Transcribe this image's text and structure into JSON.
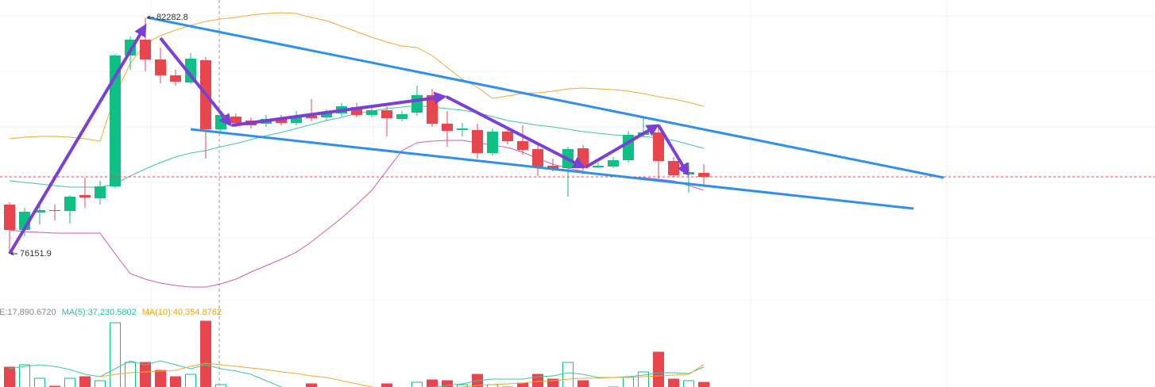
{
  "chart_data": {
    "type": "candlestick",
    "up_color": "#0ebf86",
    "down_color": "#e8464f",
    "ylim": [
      74917,
      82735
    ],
    "open": [
      77427,
      76769,
      77221,
      77283,
      77262,
      77674,
      77591,
      77900,
      81295,
      81706,
      81192,
      80780,
      80595,
      81171,
      79381,
      79711,
      79608,
      79525,
      79669,
      79546,
      79731,
      79690,
      79793,
      79958,
      79752,
      79875,
      79649,
      79813,
      80266,
      79525,
      79361,
      79361,
      78764,
      79320,
      79073,
      78867,
      78435,
      78373,
      78888,
      78394,
      78414,
      78579,
      79237,
      79299,
      78558,
      78209,
      78250
    ],
    "high": [
      77489,
      77344,
      77427,
      77427,
      77674,
      78126,
      78044,
      81336,
      81789,
      82282.8,
      81501,
      80924,
      81357,
      81254,
      79855,
      79793,
      79690,
      79752,
      79752,
      79855,
      80163,
      79896,
      80060,
      80060,
      79937,
      79978,
      79855,
      80513,
      80431,
      79855,
      79546,
      79525,
      79402,
      79443,
      79484,
      79032,
      78620,
      78929,
      78970,
      78517,
      78661,
      79340,
      79690,
      79443,
      78661,
      78517,
      78476
    ],
    "low": [
      76151.9,
      76604,
      76913,
      77015,
      76933,
      77344,
      77427,
      77859,
      80924,
      80883,
      80575,
      80513,
      80554,
      78620,
      79279,
      79443,
      79402,
      79443,
      79484,
      79484,
      79587,
      79608,
      79711,
      79690,
      79690,
      79196,
      79587,
      79731,
      79443,
      78929,
      79196,
      78620,
      78702,
      78991,
      78723,
      78168,
      78291,
      77633,
      78312,
      78373,
      78373,
      78517,
      79176,
      78106,
      78147,
      77736,
      77941
    ],
    "close": [
      76769,
      77242,
      77283,
      77262,
      77633,
      77612,
      77900,
      81295,
      81706,
      81192,
      80780,
      80616,
      81213,
      79381,
      79752,
      79546,
      79484,
      79649,
      79546,
      79731,
      79669,
      79793,
      79978,
      79752,
      79875,
      79669,
      79772,
      80266,
      79525,
      79340,
      79402,
      78764,
      79320,
      79073,
      78847,
      78414,
      78353,
      78867,
      78394,
      78435,
      78579,
      79237,
      79299,
      78558,
      78188,
      78270,
      78147
    ],
    "overlays": [
      {
        "color": "#f0a92e",
        "values": [
          79135,
          79176,
          79196,
          79196,
          79176,
          79135,
          79073,
          80266,
          81089,
          81603,
          81809,
          81953,
          82077,
          82180,
          82241,
          82282,
          82344,
          82385,
          82406,
          82385,
          82282,
          82200,
          82056,
          81912,
          81768,
          81645,
          81542,
          81501,
          81295,
          80986,
          80678,
          80472,
          80184,
          80246,
          80307,
          80328,
          80369,
          80431,
          80451,
          80431,
          80410,
          80369,
          80307,
          80225,
          80163,
          80081,
          79978
        ]
      },
      {
        "color": "#3cc7a4",
        "values": [
          78044,
          78003,
          77962,
          77921,
          77880,
          77880,
          77880,
          77962,
          78168,
          78353,
          78517,
          78661,
          78764,
          78826,
          78929,
          79011,
          79114,
          79217,
          79299,
          79402,
          79505,
          79608,
          79690,
          79793,
          79855,
          79916,
          79958,
          79999,
          79958,
          79916,
          79875,
          79813,
          79711,
          79608,
          79546,
          79484,
          79443,
          79381,
          79320,
          79279,
          79237,
          79217,
          79196,
          79155,
          79094,
          78991,
          78888
        ]
      },
      {
        "color": "#d45ab8",
        "values": [
          76769,
          76727,
          76707,
          76686,
          76686,
          76686,
          76686,
          76151,
          75637,
          75493,
          75390,
          75328,
          75287,
          75287,
          75370,
          75493,
          75678,
          75843,
          76007,
          76192,
          76460,
          76769,
          77077,
          77427,
          77797,
          78312,
          78826,
          79032,
          79073,
          79094,
          79094,
          79032,
          78970,
          78908,
          78785,
          78620,
          78476,
          78373,
          78291,
          78209,
          78168,
          78126,
          78126,
          78085,
          78044,
          77921,
          77797
        ]
      }
    ],
    "volume_lim": [
      0,
      115000
    ],
    "volume": [
      37000,
      40000,
      23000,
      13000,
      23000,
      25000,
      20000,
      93000,
      43000,
      43000,
      33000,
      25000,
      28000,
      95000,
      15000,
      5000,
      6000,
      5000,
      6000,
      6000,
      16000,
      7000,
      8000,
      10000,
      6000,
      16000,
      8000,
      18000,
      21000,
      20000,
      15000,
      28000,
      15000,
      12000,
      17000,
      28000,
      22000,
      43000,
      20000,
      11000,
      12000,
      24000,
      31000,
      56000,
      22000,
      20000,
      17890.672
    ],
    "volume_ma": [
      {
        "color": "#3cc7a4",
        "values": [
          35000,
          38000,
          40000,
          38000,
          34000,
          28000,
          25000,
          35000,
          45000,
          40000,
          45000,
          40000,
          35000,
          40000,
          35000,
          32000,
          28000,
          20000,
          12000,
          7000,
          8000,
          7000,
          7000,
          6000,
          6000,
          8000,
          8000,
          10000,
          12000,
          14000,
          16000,
          20000,
          22000,
          22000,
          22000,
          25000,
          26000,
          30000,
          28000,
          24000,
          24000,
          25000,
          27000,
          30000,
          30000,
          29000,
          37230.5802
        ]
      },
      {
        "color": "#f0a92e",
        "values": [
          null,
          null,
          null,
          null,
          null,
          null,
          25000,
          28000,
          30000,
          31000,
          32000,
          33000,
          38000,
          42000,
          40000,
          38000,
          36000,
          34000,
          31000,
          29000,
          26000,
          24000,
          20000,
          16000,
          12000,
          10000,
          8000,
          9000,
          10000,
          11000,
          12000,
          14000,
          15000,
          16000,
          17000,
          19000,
          20000,
          22000,
          23000,
          23000,
          24000,
          24000,
          25000,
          26000,
          27000,
          28000,
          40354.8762
        ]
      }
    ],
    "volume_legend": [
      {
        "text": "E:17,890.6720",
        "color": "#888888"
      },
      {
        "text": "MA(5):37,230.5802",
        "color": "#2ebfa0"
      },
      {
        "text": "MA(10):40,354.8762",
        "color": "#e8a317"
      }
    ]
  }
}
